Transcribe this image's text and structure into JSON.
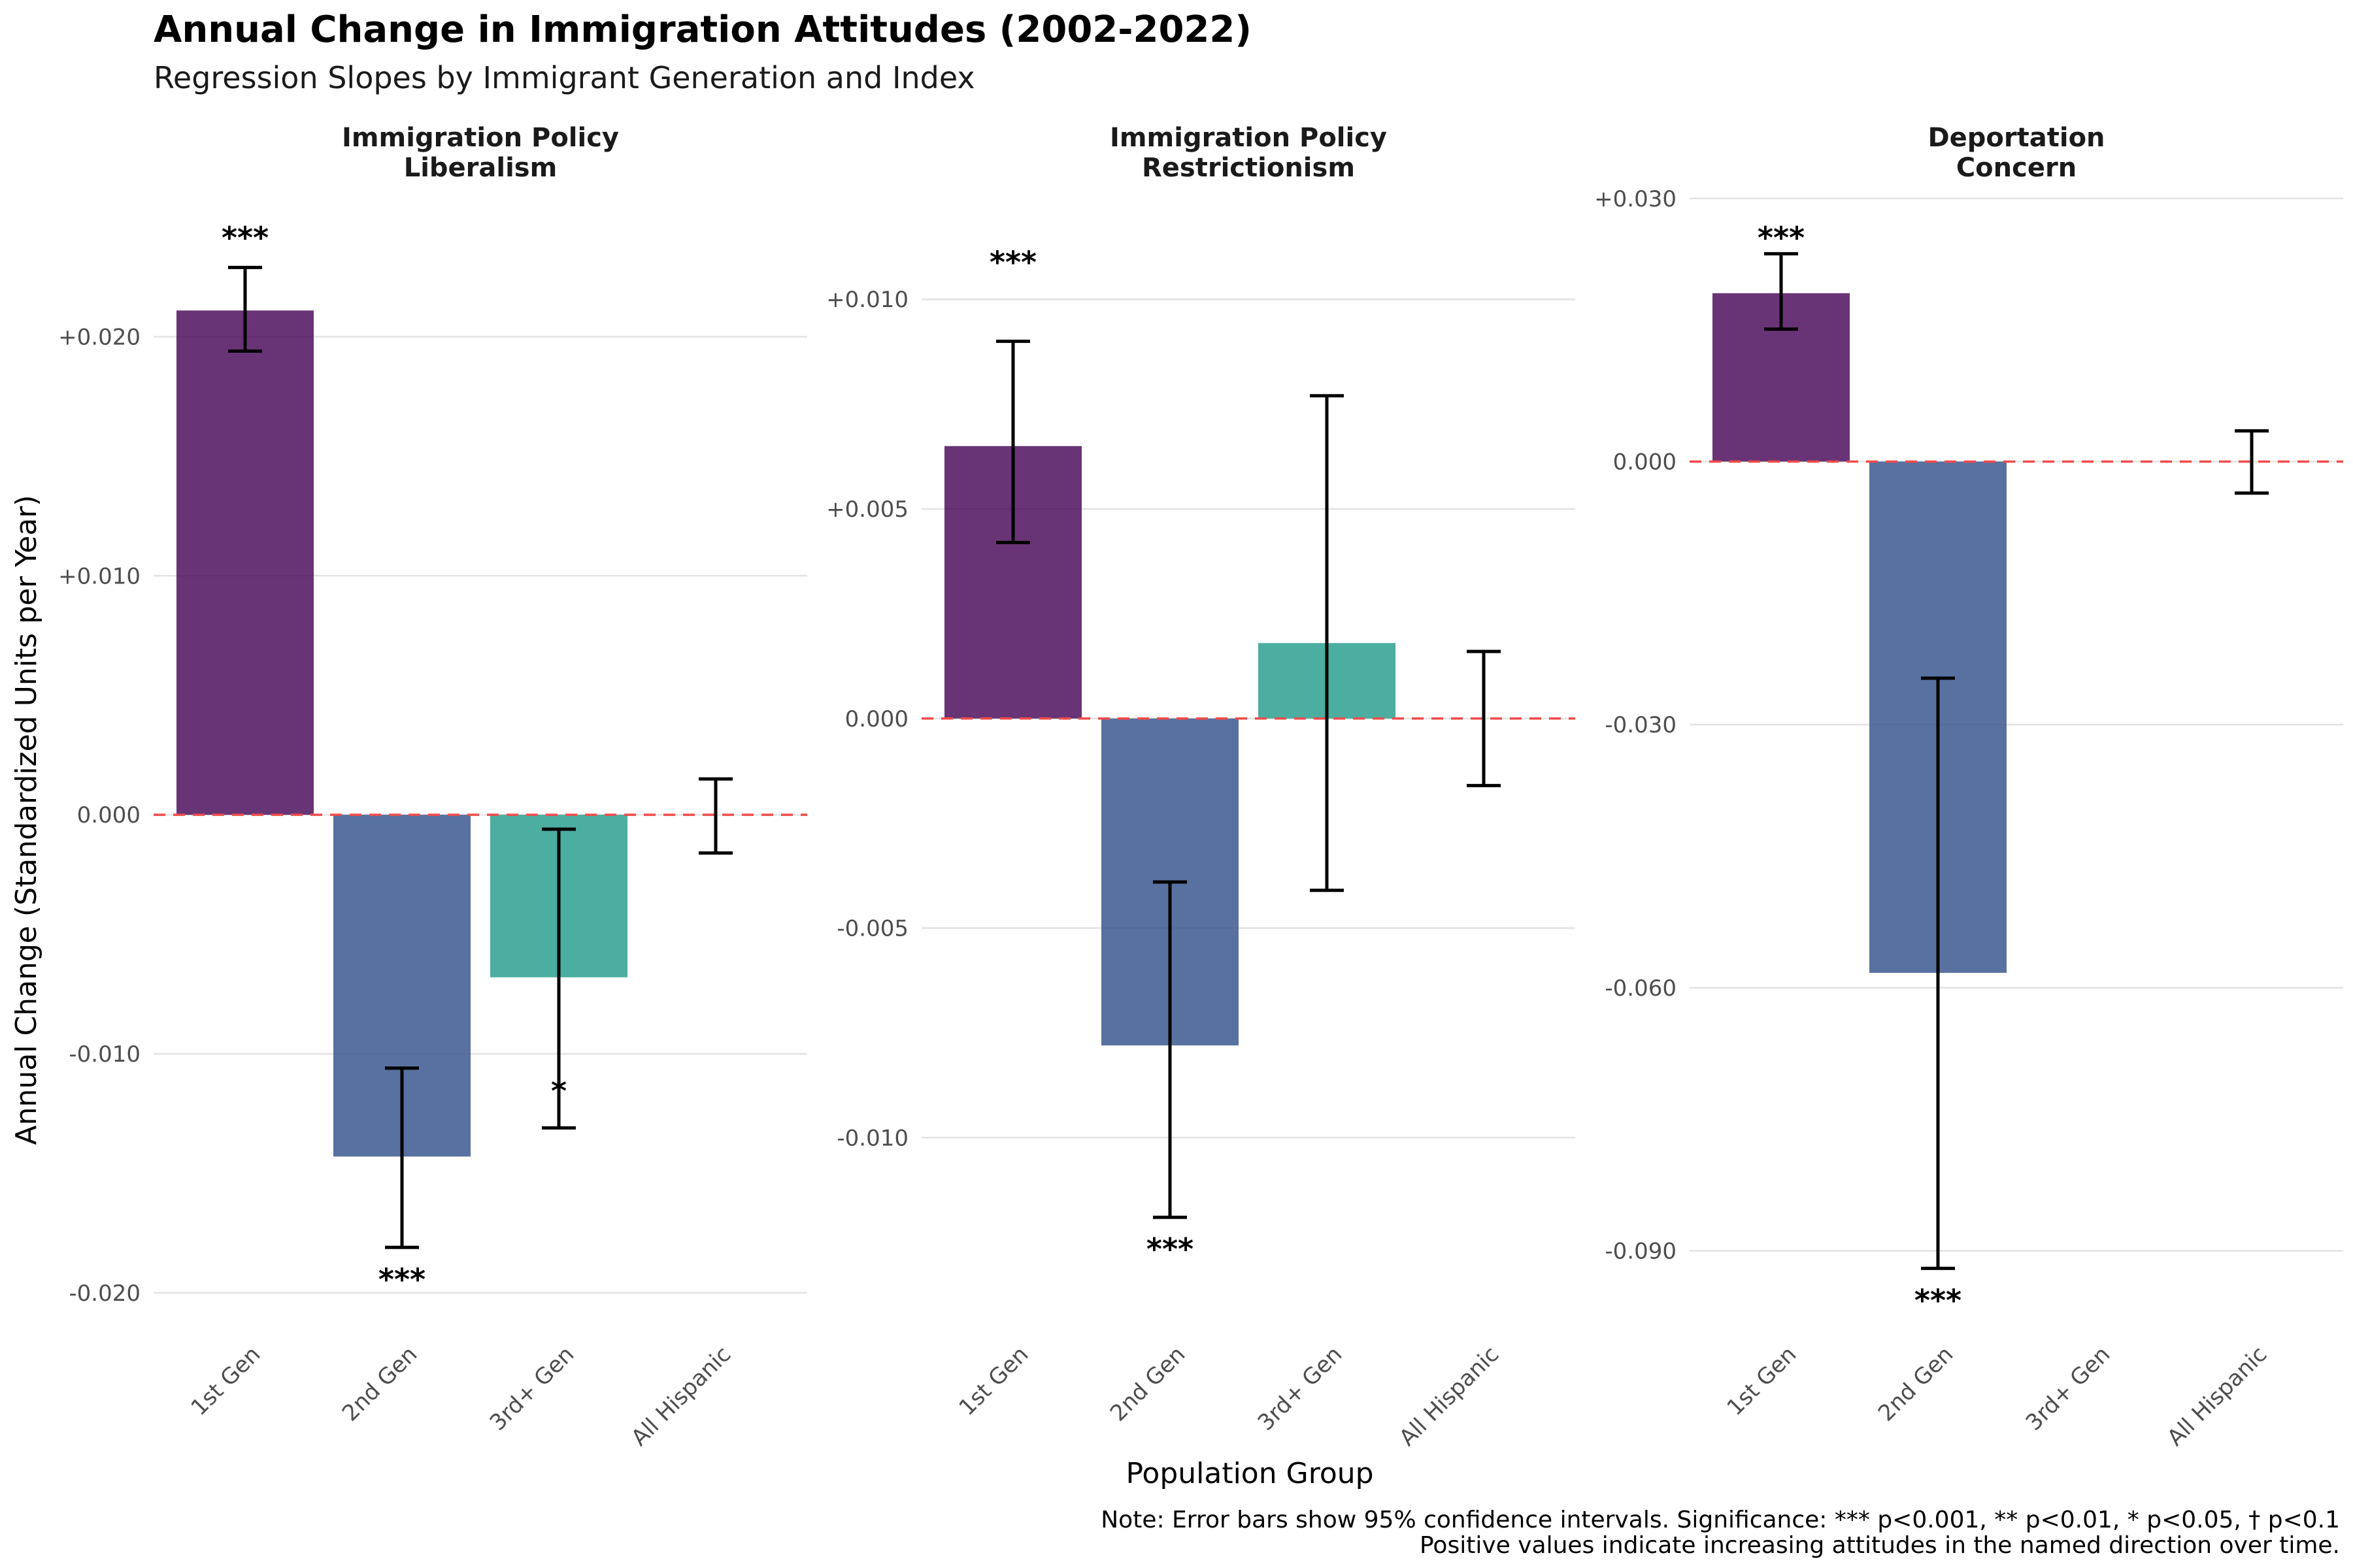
{
  "title": "Annual Change in Immigration Attitudes (2002-2022)",
  "subtitle": "Regression Slopes by Immigrant Generation and Index",
  "chart_data": {
    "type": "bar",
    "xlabel": "Population Group",
    "ylabel": "Annual Change (Standardized Units per Year)",
    "categories": [
      "1st Gen",
      "2nd Gen",
      "3rd+ Gen",
      "All Hispanic"
    ],
    "colors": {
      "1st Gen": "#440154",
      "2nd Gen": "#2f4d8a",
      "3rd+ Gen": "#1f9a8a",
      "reference_line": "#f04b4b"
    },
    "bar_opacity": 0.8,
    "reference_line": {
      "y": 0,
      "style": "dashed",
      "color": "#f04b4b"
    },
    "grid": true,
    "legend": "none",
    "panels": [
      {
        "title_lines": [
          "Immigration Policy",
          "Liberalism"
        ],
        "ylim": [
          -0.0214,
          0.0263
        ],
        "ticks": [
          -0.02,
          -0.01,
          0.0,
          0.01,
          0.02
        ],
        "tick_labels": [
          "-0.020",
          "-0.010",
          "0.000",
          "+0.010",
          "+0.020"
        ],
        "bars": [
          {
            "category": "1st Gen",
            "value": 0.0211,
            "ci_low": 0.0194,
            "ci_high": 0.0229,
            "sig": "***"
          },
          {
            "category": "2nd Gen",
            "value": -0.0143,
            "ci_low": -0.0181,
            "ci_high": -0.0106,
            "sig": "***"
          },
          {
            "category": "3rd+ Gen",
            "value": -0.0068,
            "ci_low": -0.0131,
            "ci_high": -0.0006,
            "sig": "*"
          },
          {
            "category": "All Hispanic",
            "value": null,
            "ci_low": -0.0016,
            "ci_high": 0.0015,
            "sig": ""
          }
        ]
      },
      {
        "title_lines": [
          "Immigration Policy",
          "Restrictionism"
        ],
        "ylim": [
          -0.0145,
          0.0127
        ],
        "ticks": [
          -0.01,
          -0.005,
          0.0,
          0.005,
          0.01
        ],
        "tick_labels": [
          "-0.010",
          "-0.005",
          "0.000",
          "+0.005",
          "+0.010"
        ],
        "bars": [
          {
            "category": "1st Gen",
            "value": 0.0065,
            "ci_low": 0.0042,
            "ci_high": 0.009,
            "sig": "***"
          },
          {
            "category": "2nd Gen",
            "value": -0.0078,
            "ci_low": -0.0119,
            "ci_high": -0.0039,
            "sig": "***"
          },
          {
            "category": "3rd+ Gen",
            "value": 0.0018,
            "ci_low": -0.0041,
            "ci_high": 0.0077,
            "sig": ""
          },
          {
            "category": "All Hispanic",
            "value": null,
            "ci_low": -0.0016,
            "ci_high": 0.0016,
            "sig": ""
          }
        ]
      },
      {
        "title_lines": [
          "Deportation",
          "Concern"
        ],
        "ylim": [
          -0.0986,
          0.0314
        ],
        "ticks": [
          -0.09,
          -0.06,
          -0.03,
          0.0,
          0.03
        ],
        "tick_labels": [
          "-0.090",
          "-0.060",
          "-0.030",
          "0.000",
          "+0.030"
        ],
        "bars": [
          {
            "category": "1st Gen",
            "value": 0.0192,
            "ci_low": 0.0151,
            "ci_high": 0.0237,
            "sig": "***"
          },
          {
            "category": "2nd Gen",
            "value": -0.0583,
            "ci_low": -0.092,
            "ci_high": -0.0247,
            "sig": "***"
          },
          {
            "category": "3rd+ Gen",
            "value": null,
            "ci_low": null,
            "ci_high": null,
            "sig": ""
          },
          {
            "category": "All Hispanic",
            "value": null,
            "ci_low": -0.0036,
            "ci_high": 0.0035,
            "sig": ""
          }
        ]
      }
    ],
    "caption_lines": [
      "Note: Error bars show 95% confidence intervals. Significance: *** p<0.001, ** p<0.01, * p<0.05, † p<0.1",
      "Positive values indicate increasing attitudes in the named direction over time."
    ]
  }
}
